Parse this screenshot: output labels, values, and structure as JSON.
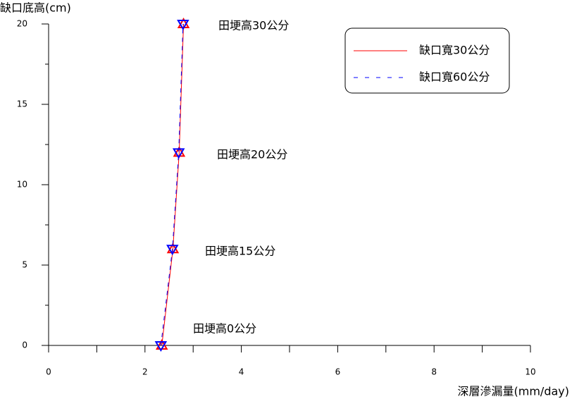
{
  "chart_data": {
    "type": "line",
    "y_label": "缺口底高(cm)",
    "x_label": "深層滲漏量(mm/day)",
    "series": [
      {
        "name": "缺口寬30公分",
        "color": "#ff0000",
        "dash": "solid",
        "x": [
          2.35,
          2.58,
          2.71,
          2.8
        ],
        "values": [
          0,
          6,
          12,
          20
        ]
      },
      {
        "name": "缺口寬60公分",
        "color": "#0000ff",
        "dash": "dashed",
        "x": [
          2.33,
          2.57,
          2.7,
          2.79
        ],
        "values": [
          0,
          6,
          12,
          20
        ]
      }
    ],
    "annotations": [
      "田埂高30公分",
      "田埂高20公分",
      "田埂高15公分",
      "田埂高0公分"
    ],
    "xlim": [
      0,
      10
    ],
    "xticks": [
      0,
      2,
      4,
      6,
      8,
      10
    ],
    "ylim": [
      0,
      20
    ],
    "yticks": [
      0,
      5,
      10,
      15,
      20
    ],
    "legend": "upper-right"
  }
}
